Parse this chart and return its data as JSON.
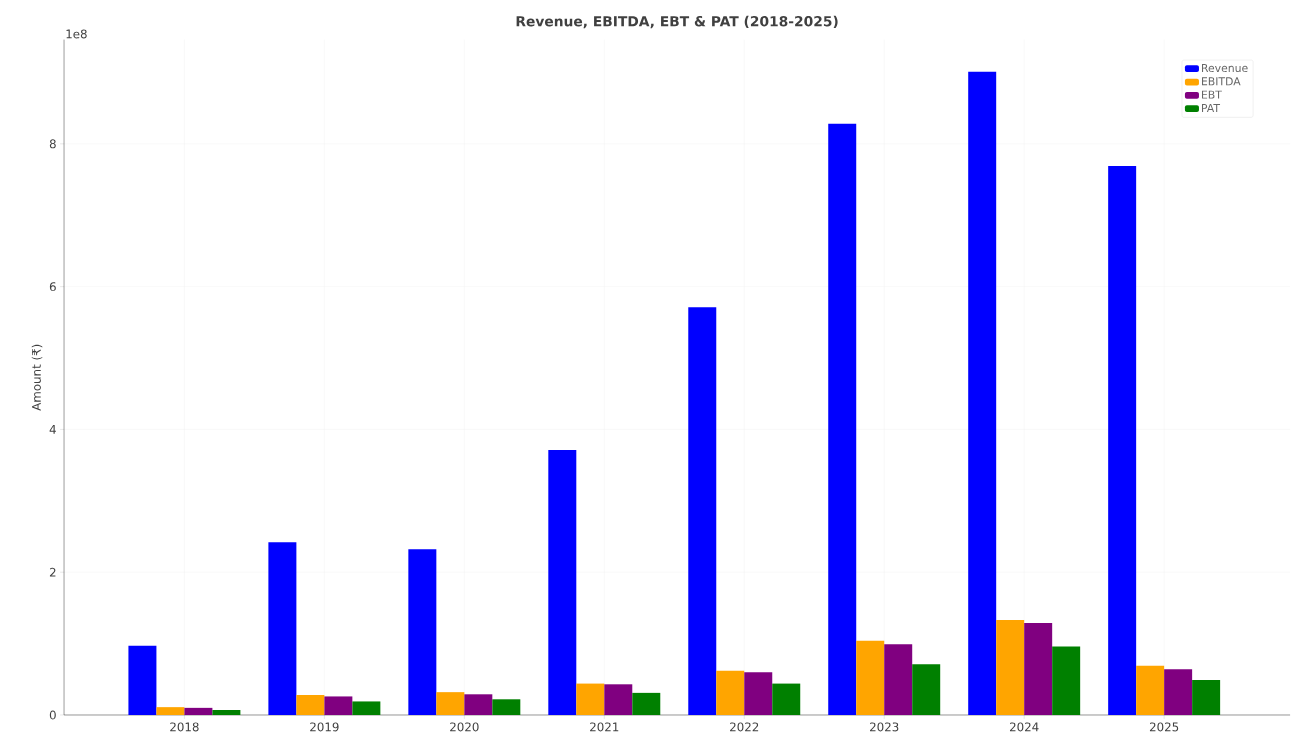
{
  "chart_data": {
    "type": "bar",
    "title": "Revenue, EBITDA, EBT & PAT (2018-2025)",
    "ylabel": "Amount (₹)",
    "categories": [
      "2018",
      "2019",
      "2020",
      "2021",
      "2022",
      "2023",
      "2024",
      "2025"
    ],
    "series": [
      {
        "name": "Revenue",
        "color": "#0000ff",
        "values": [
          0.97,
          2.42,
          2.32,
          3.71,
          5.71,
          8.28,
          9.01,
          7.69
        ]
      },
      {
        "name": "EBITDA",
        "color": "#ffa500",
        "values": [
          0.11,
          0.28,
          0.32,
          0.44,
          0.62,
          1.04,
          1.33,
          0.69
        ]
      },
      {
        "name": "EBT",
        "color": "#800080",
        "values": [
          0.1,
          0.26,
          0.29,
          0.43,
          0.6,
          0.99,
          1.29,
          0.64
        ]
      },
      {
        "name": "PAT",
        "color": "#008000",
        "values": [
          0.07,
          0.19,
          0.22,
          0.31,
          0.44,
          0.71,
          0.96,
          0.49
        ]
      }
    ],
    "ylim": [
      0,
      9.46
    ],
    "yticks": [
      0,
      2,
      4,
      6,
      8
    ],
    "annotations": [
      "1e8"
    ],
    "grid": true,
    "legend": "top right"
  }
}
